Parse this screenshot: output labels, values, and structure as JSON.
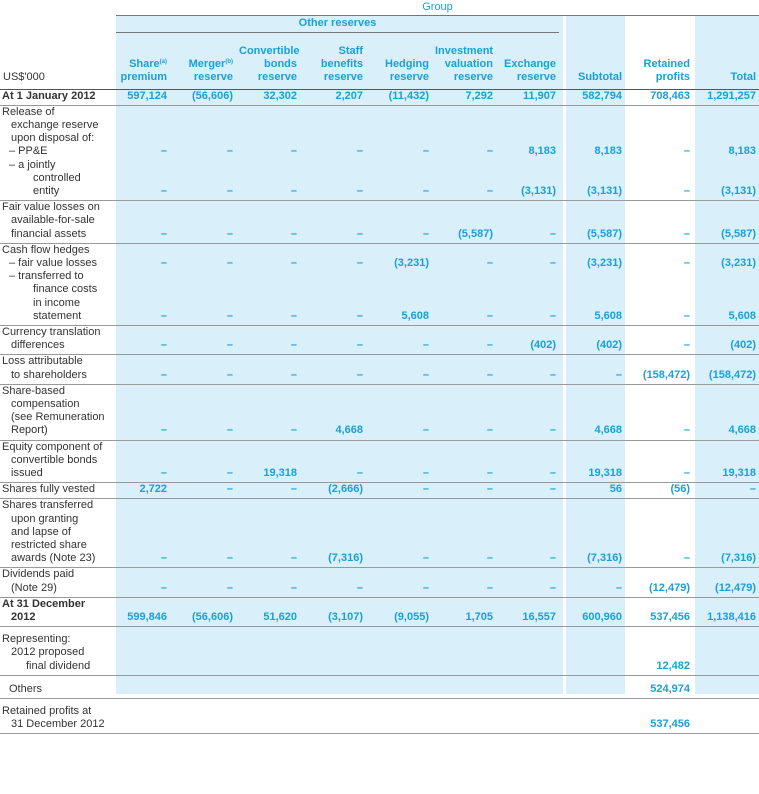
{
  "header": {
    "group": "Group",
    "other_reserves": "Other reserves",
    "unit": "US$'000",
    "columns": [
      {
        "line1": "",
        "line2": "Share",
        "sup": "(a)",
        "line3": "premium"
      },
      {
        "line1": "",
        "line2": "Merger",
        "sup": "(b)",
        "line3": "reserve"
      },
      {
        "line1": "Convertible",
        "line2": "bonds",
        "sup": "",
        "line3": "reserve"
      },
      {
        "line1": "Staff",
        "line2": "benefits",
        "sup": "",
        "line3": "reserve"
      },
      {
        "line1": "",
        "line2": "Hedging",
        "sup": "",
        "line3": "reserve"
      },
      {
        "line1": "Investment",
        "line2": "valuation",
        "sup": "",
        "line3": "reserve"
      },
      {
        "line1": "",
        "line2": "Exchange",
        "sup": "",
        "line3": "reserve"
      },
      {
        "line1": "",
        "line2": "",
        "sup": "",
        "line3": "Subtotal"
      },
      {
        "line1": "",
        "line2": "Retained",
        "sup": "",
        "line3": "profits"
      },
      {
        "line1": "",
        "line2": "",
        "sup": "",
        "line3": "Total"
      }
    ]
  },
  "rows": {
    "opening": {
      "label": "At 1 January 2012",
      "v": [
        "597,124",
        "(56,606)",
        "32,302",
        "2,207",
        "(11,432)",
        "7,292",
        "11,907",
        "582,794",
        "708,463",
        "1,291,257"
      ]
    },
    "release_label": [
      "Release of",
      "exchange reserve",
      "upon disposal of:"
    ],
    "ppe": {
      "label": "– PP&E",
      "v": [
        "–",
        "–",
        "–",
        "–",
        "–",
        "–",
        "8,183",
        "8,183",
        "–",
        "8,183"
      ]
    },
    "jce": {
      "label": [
        "– a jointly",
        "controlled",
        "entity"
      ],
      "v": [
        "–",
        "–",
        "–",
        "–",
        "–",
        "–",
        "(3,131)",
        "(3,131)",
        "–",
        "(3,131)"
      ]
    },
    "fv": {
      "label": [
        "Fair value losses on",
        "available-for-sale",
        "financial assets"
      ],
      "v": [
        "–",
        "–",
        "–",
        "–",
        "–",
        "(5,587)",
        "–",
        "(5,587)",
        "–",
        "(5,587)"
      ]
    },
    "cfh_label": "Cash flow hedges",
    "cfh_fv": {
      "label": "– fair value losses",
      "v": [
        "–",
        "–",
        "–",
        "–",
        "(3,231)",
        "–",
        "–",
        "(3,231)",
        "–",
        "(3,231)"
      ]
    },
    "cfh_tr": {
      "label": [
        "– transferred to",
        "finance costs",
        "in income",
        "statement"
      ],
      "v": [
        "–",
        "–",
        "–",
        "–",
        "5,608",
        "–",
        "–",
        "5,608",
        "–",
        "5,608"
      ]
    },
    "ctd": {
      "label": [
        "Currency translation",
        "differences"
      ],
      "v": [
        "–",
        "–",
        "–",
        "–",
        "–",
        "–",
        "(402)",
        "(402)",
        "–",
        "(402)"
      ]
    },
    "loss": {
      "label": [
        "Loss attributable",
        "to shareholders"
      ],
      "v": [
        "–",
        "–",
        "–",
        "–",
        "–",
        "–",
        "–",
        "–",
        "(158,472)",
        "(158,472)"
      ]
    },
    "sbc": {
      "label": [
        "Share-based",
        "compensation",
        "(see Remuneration",
        "Report)"
      ],
      "v": [
        "–",
        "–",
        "–",
        "4,668",
        "–",
        "–",
        "–",
        "4,668",
        "–",
        "4,668"
      ]
    },
    "eq": {
      "label": [
        "Equity component of",
        "convertible bonds",
        "issued"
      ],
      "v": [
        "–",
        "–",
        "19,318",
        "–",
        "–",
        "–",
        "–",
        "19,318",
        "–",
        "19,318"
      ]
    },
    "sfv": {
      "label": "Shares fully vested",
      "v": [
        "2,722",
        "–",
        "–",
        "(2,666)",
        "–",
        "–",
        "–",
        "56",
        "(56)",
        "–"
      ]
    },
    "stu": {
      "label": [
        "Shares transferred",
        "upon granting",
        "and lapse of",
        "restricted share",
        "awards (Note 23)"
      ],
      "v": [
        "–",
        "–",
        "–",
        "(7,316)",
        "–",
        "–",
        "–",
        "(7,316)",
        "–",
        "(7,316)"
      ]
    },
    "div": {
      "label": [
        "Dividends paid",
        "(Note 29)"
      ],
      "v": [
        "–",
        "–",
        "–",
        "–",
        "–",
        "–",
        "–",
        "–",
        "(12,479)",
        "(12,479)"
      ]
    },
    "closing": {
      "label": [
        "At 31 December",
        "2012"
      ],
      "v": [
        "599,846",
        "(56,606)",
        "51,620",
        "(3,107)",
        "(9,055)",
        "1,705",
        "16,557",
        "600,960",
        "537,456",
        "1,138,416"
      ]
    },
    "repr_label": "Representing:",
    "proposed": {
      "label": [
        "2012 proposed",
        "final dividend"
      ],
      "value": "12,482"
    },
    "others": {
      "label": "Others",
      "value": "524,974"
    },
    "retained_end": {
      "label": [
        "Retained profits at",
        "31 December 2012"
      ],
      "value": "537,456"
    }
  },
  "colors": {
    "accent": "#1aa0d6",
    "shade": "#d9f0fa"
  }
}
